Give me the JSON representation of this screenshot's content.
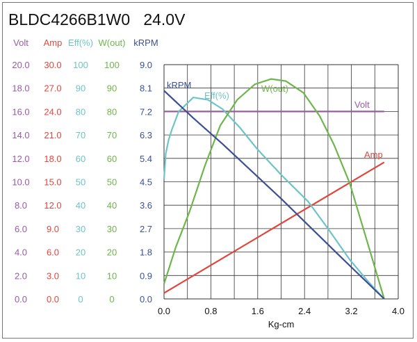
{
  "chart_data": {
    "type": "line",
    "title": "BLDC4266B1W0   24.0V",
    "xlabel": "Kg-cm",
    "xlim": [
      0,
      4.0
    ],
    "xticks": [
      "0.0",
      "0.8",
      "1.6",
      "2.4",
      "3.2",
      "4.0"
    ],
    "grid": true,
    "axes": [
      {
        "name": "Volt",
        "color": "#9b59a6",
        "ticks": [
          "0.0",
          "2.0",
          "4.0",
          "6.0",
          "8.0",
          "10.0",
          "12.0",
          "14.0",
          "16.0",
          "18.0",
          "20.0"
        ],
        "max": 20
      },
      {
        "name": "Amp",
        "color": "#e0463c",
        "ticks": [
          "0.0",
          "3.0",
          "6.0",
          "9.0",
          "12.0",
          "15.0",
          "18.0",
          "21.0",
          "24.0",
          "27.0",
          "30.0"
        ],
        "max": 30
      },
      {
        "name": "Eff(%)",
        "color": "#6cc4c8",
        "ticks": [
          "0",
          "10",
          "20",
          "30",
          "40",
          "50",
          "60",
          "70",
          "80",
          "90",
          "100"
        ],
        "max": 100
      },
      {
        "name": "W(out)",
        "color": "#6db64a",
        "ticks": [
          "0",
          "10",
          "20",
          "30",
          "40",
          "50",
          "60",
          "70",
          "80",
          "90",
          "100"
        ],
        "max": 100
      },
      {
        "name": "kRPM",
        "color": "#3a4f95",
        "ticks": [
          "0.0",
          "0.9",
          "1.8",
          "2.7",
          "3.6",
          "4.5",
          "5.4",
          "6.3",
          "7.2",
          "8.1",
          "9.0"
        ],
        "max": 9
      }
    ],
    "series": [
      {
        "name": "Volt",
        "axis": 0,
        "label": "Volt",
        "x": [
          0,
          3.76
        ],
        "y": [
          16.0,
          16.0
        ]
      },
      {
        "name": "Amp",
        "axis": 1,
        "label": "Amp",
        "x": [
          0,
          3.76
        ],
        "y": [
          0.75,
          17.5
        ]
      },
      {
        "name": "Eff(%)",
        "axis": 2,
        "label": "Eff(%)",
        "x": [
          0,
          0.03,
          0.08,
          0.13,
          0.25,
          0.5,
          0.75,
          1.0,
          1.3,
          1.59,
          2.0,
          2.46,
          2.8,
          3.17,
          3.5,
          3.76
        ],
        "y": [
          51,
          62,
          68,
          72,
          80,
          86,
          85,
          81,
          73,
          64,
          53,
          41.6,
          30,
          16.8,
          7,
          0
        ]
      },
      {
        "name": "W(out)",
        "axis": 3,
        "label": "W(out)",
        "x": [
          0,
          0.2,
          0.44,
          0.7,
          0.96,
          1.25,
          1.55,
          1.83,
          2.08,
          2.38,
          2.66,
          2.9,
          3.17,
          3.49,
          3.76
        ],
        "y": [
          6.4,
          22,
          37.6,
          57,
          74,
          85,
          91.6,
          93.9,
          93,
          88,
          78,
          66,
          49.5,
          22.8,
          0
        ]
      },
      {
        "name": "kRPM",
        "axis": 4,
        "label": "kRPM",
        "x": [
          0,
          0.5,
          1.0,
          2.0,
          3.0,
          3.76
        ],
        "y": [
          8.0,
          6.95,
          5.95,
          3.85,
          1.65,
          0
        ]
      }
    ]
  }
}
